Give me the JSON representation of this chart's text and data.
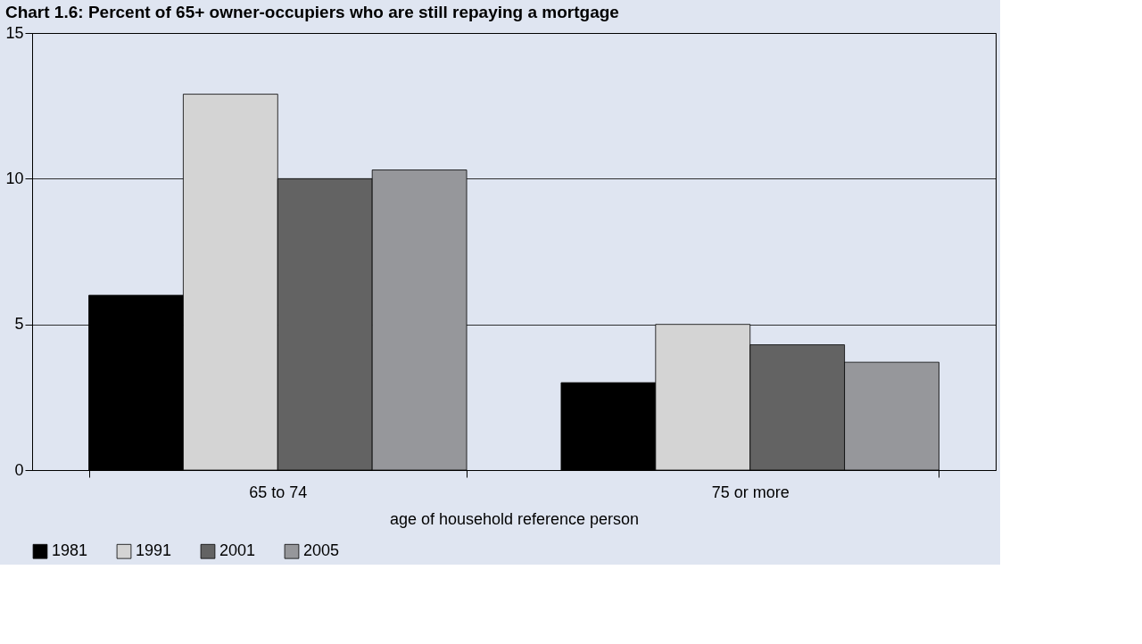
{
  "chart_data": {
    "type": "bar",
    "title": "Chart 1.6: Percent of 65+ owner-occupiers who are still repaying a mortgage",
    "xlabel": "age of household reference person",
    "categories": [
      "65 to 74",
      "75 or more"
    ],
    "series": [
      {
        "name": "1981",
        "color": "#000000",
        "values": [
          6.0,
          3.0
        ]
      },
      {
        "name": "1991",
        "color": "#d4d4d4",
        "values": [
          12.9,
          5.0
        ]
      },
      {
        "name": "2001",
        "color": "#636363",
        "values": [
          10.0,
          4.3
        ]
      },
      {
        "name": "2005",
        "color": "#96979b",
        "values": [
          10.3,
          3.7
        ]
      }
    ],
    "ylim": [
      0,
      15
    ],
    "yticks": [
      0,
      5,
      10,
      15
    ],
    "grid": "y",
    "legend": "bottom"
  }
}
